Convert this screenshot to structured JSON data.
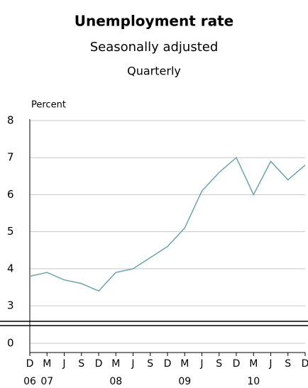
{
  "chart_data": {
    "type": "line",
    "title": "Unemployment rate",
    "subtitle": "Seasonally adjusted",
    "frequency": "Quarterly",
    "y_label": "Percent",
    "categories": [
      "D",
      "M",
      "J",
      "S",
      "D",
      "M",
      "J",
      "S",
      "D",
      "M",
      "J",
      "S",
      "D",
      "M",
      "J",
      "S",
      "D"
    ],
    "year_labels": [
      "06",
      "07",
      null,
      null,
      null,
      "08",
      null,
      null,
      null,
      "09",
      null,
      null,
      null,
      "10",
      null,
      null,
      null
    ],
    "series": [
      {
        "name": "Unemployment rate",
        "color": "#6aa6a6",
        "values": [
          3.8,
          3.9,
          3.7,
          3.6,
          3.4,
          3.9,
          4.0,
          4.3,
          4.6,
          5.1,
          6.1,
          6.6,
          7.0,
          6.0,
          6.9,
          6.4,
          6.8
        ]
      }
    ],
    "ylim": [
      2.6,
      8
    ],
    "yticks": [
      3,
      4,
      5,
      6,
      7,
      8
    ],
    "lower_yticks": [
      0
    ],
    "grid": true
  }
}
